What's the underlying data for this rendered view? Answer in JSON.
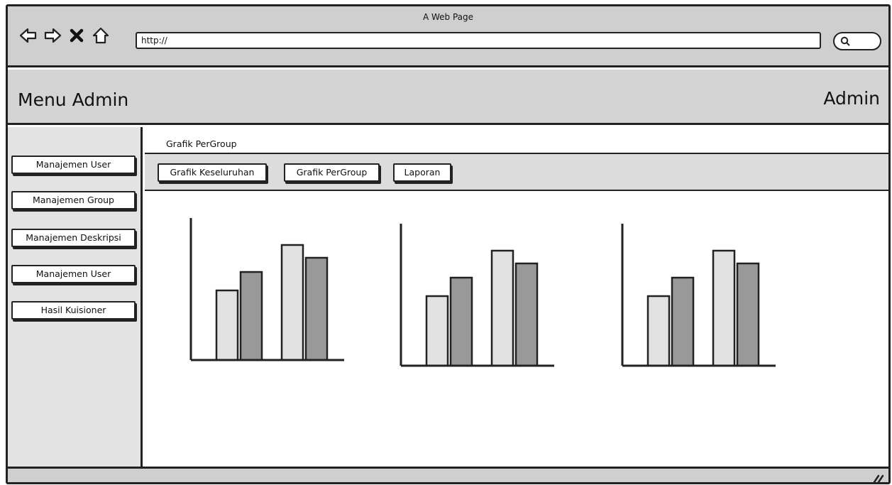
{
  "window": {
    "title": "A Web Page"
  },
  "browser": {
    "nav_icons": [
      "back-arrow-icon",
      "forward-arrow-icon",
      "close-x-icon",
      "home-icon"
    ],
    "url": "http://",
    "search_icon": "search-icon"
  },
  "header": {
    "title": "Menu Admin",
    "user": "Admin"
  },
  "sidebar": {
    "items": [
      {
        "label": "Manajemen User"
      },
      {
        "label": "Manajemen Group"
      },
      {
        "label": "Manajemen Deskripsi"
      },
      {
        "label": "Manajemen User"
      },
      {
        "label": "Hasil Kuisioner"
      }
    ]
  },
  "main": {
    "breadcrumb": "Grafik PerGroup",
    "tabs": [
      {
        "label": "Grafik Keseluruhan"
      },
      {
        "label": "Grafik PerGroup"
      },
      {
        "label": "Laporan"
      }
    ]
  },
  "colors": {
    "bar_light": "#e2e2e2",
    "bar_dark": "#999999",
    "outline": "#222222"
  },
  "chart_data": [
    {
      "type": "bar",
      "categories": [
        "",
        ""
      ],
      "series": [
        {
          "values": [
            0.49,
            0.81
          ]
        },
        {
          "values": [
            0.62,
            0.72
          ]
        }
      ],
      "ylim": [
        0,
        1
      ],
      "grid": false
    },
    {
      "type": "bar",
      "categories": [
        "",
        ""
      ],
      "series": [
        {
          "values": [
            0.49,
            0.81
          ]
        },
        {
          "values": [
            0.62,
            0.72
          ]
        }
      ],
      "ylim": [
        0,
        1
      ],
      "grid": false
    },
    {
      "type": "bar",
      "categories": [
        "",
        ""
      ],
      "series": [
        {
          "values": [
            0.49,
            0.81
          ]
        },
        {
          "values": [
            0.62,
            0.72
          ]
        }
      ],
      "ylim": [
        0,
        1
      ],
      "grid": false
    }
  ]
}
